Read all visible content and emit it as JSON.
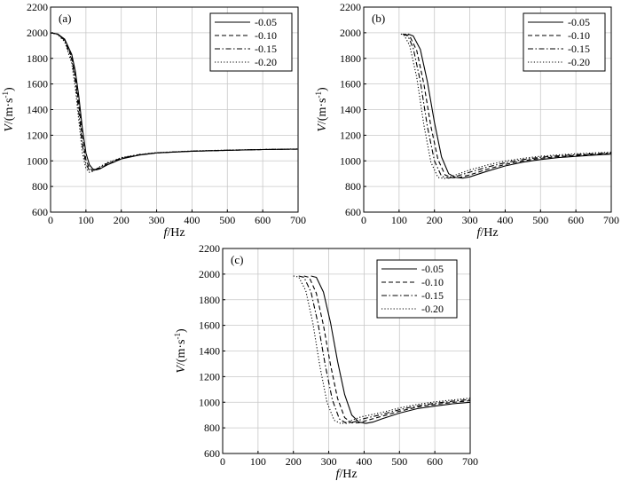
{
  "chart_data": [
    {
      "type": "line",
      "panel_label": "(a)",
      "xlabel_italic": "f",
      "xlabel_rest": "/Hz",
      "ylabel_italic": "V",
      "ylabel_rest": "/(m·s",
      "ylabel_sup": "-1",
      "ylabel_close": ")",
      "xlim": [
        0,
        700
      ],
      "ylim": [
        600,
        2200
      ],
      "xticks": [
        0,
        100,
        200,
        300,
        400,
        500,
        600,
        700
      ],
      "yticks": [
        600,
        800,
        1000,
        1200,
        1400,
        1600,
        1800,
        2000,
        2200
      ],
      "grid": true,
      "legend_position": "top-right",
      "series": [
        {
          "name": "-0.05",
          "dash": "solid",
          "x": [
            0,
            20,
            40,
            60,
            70,
            80,
            90,
            100,
            110,
            120,
            130,
            140,
            160,
            200,
            250,
            300,
            400,
            500,
            600,
            700
          ],
          "y": [
            2000,
            1990,
            1950,
            1830,
            1700,
            1500,
            1250,
            1060,
            970,
            935,
            930,
            938,
            968,
            1015,
            1045,
            1062,
            1075,
            1082,
            1088,
            1092
          ]
        },
        {
          "name": "-0.10",
          "dash": "dashed",
          "x": [
            0,
            20,
            40,
            60,
            70,
            80,
            90,
            100,
            110,
            120,
            140,
            160,
            200,
            250,
            300,
            400,
            500,
            600,
            700
          ],
          "y": [
            2000,
            1990,
            1945,
            1810,
            1660,
            1440,
            1180,
            1010,
            940,
            925,
            942,
            972,
            1018,
            1046,
            1062,
            1075,
            1082,
            1088,
            1092
          ]
        },
        {
          "name": "-0.15",
          "dash": "dashdot",
          "x": [
            0,
            20,
            40,
            60,
            70,
            80,
            90,
            100,
            110,
            120,
            140,
            160,
            200,
            250,
            300,
            400,
            500,
            600,
            700
          ],
          "y": [
            2000,
            1988,
            1940,
            1790,
            1620,
            1380,
            1120,
            975,
            925,
            925,
            950,
            980,
            1022,
            1048,
            1063,
            1076,
            1083,
            1088,
            1092
          ]
        },
        {
          "name": "-0.20",
          "dash": "dotted",
          "x": [
            0,
            20,
            40,
            60,
            70,
            80,
            90,
            100,
            110,
            120,
            140,
            160,
            200,
            250,
            300,
            400,
            500,
            600,
            700
          ],
          "y": [
            2000,
            1986,
            1930,
            1760,
            1570,
            1310,
            1060,
            940,
            910,
            918,
            955,
            985,
            1025,
            1050,
            1064,
            1077,
            1084,
            1089,
            1093
          ]
        }
      ]
    },
    {
      "type": "line",
      "panel_label": "(b)",
      "xlabel_italic": "f",
      "xlabel_rest": "/Hz",
      "ylabel_italic": "V",
      "ylabel_rest": "/(m·s",
      "ylabel_sup": "-1",
      "ylabel_close": ")",
      "xlim": [
        0,
        700
      ],
      "ylim": [
        600,
        2200
      ],
      "xticks": [
        0,
        100,
        200,
        300,
        400,
        500,
        600,
        700
      ],
      "yticks": [
        600,
        800,
        1000,
        1200,
        1400,
        1600,
        1800,
        2000,
        2200
      ],
      "grid": true,
      "legend_position": "top-right",
      "series": [
        {
          "name": "-0.05",
          "dash": "solid",
          "x": [
            125,
            140,
            160,
            180,
            200,
            220,
            240,
            260,
            280,
            300,
            350,
            400,
            450,
            500,
            550,
            600,
            650,
            700
          ],
          "y": [
            1990,
            1975,
            1870,
            1620,
            1300,
            1030,
            900,
            870,
            865,
            875,
            920,
            960,
            990,
            1010,
            1025,
            1035,
            1045,
            1052
          ]
        },
        {
          "name": "-0.10",
          "dash": "dashed",
          "x": [
            115,
            130,
            150,
            170,
            190,
            210,
            230,
            250,
            270,
            300,
            350,
            400,
            450,
            500,
            550,
            600,
            650,
            700
          ],
          "y": [
            1990,
            1975,
            1860,
            1600,
            1270,
            1010,
            890,
            868,
            870,
            890,
            935,
            972,
            1000,
            1020,
            1033,
            1042,
            1050,
            1057
          ]
        },
        {
          "name": "-0.15",
          "dash": "dashdot",
          "x": [
            110,
            125,
            140,
            160,
            180,
            200,
            220,
            240,
            260,
            300,
            350,
            400,
            450,
            500,
            550,
            600,
            650,
            700
          ],
          "y": [
            1990,
            1975,
            1880,
            1620,
            1270,
            1000,
            880,
            865,
            878,
            912,
            952,
            985,
            1010,
            1028,
            1040,
            1048,
            1055,
            1062
          ]
        },
        {
          "name": "-0.20",
          "dash": "dotted",
          "x": [
            105,
            115,
            130,
            150,
            170,
            190,
            210,
            230,
            250,
            300,
            350,
            400,
            450,
            500,
            550,
            600,
            650,
            700
          ],
          "y": [
            1990,
            1978,
            1900,
            1650,
            1280,
            990,
            870,
            862,
            880,
            930,
            968,
            998,
            1020,
            1036,
            1047,
            1055,
            1062,
            1068
          ]
        }
      ]
    },
    {
      "type": "line",
      "panel_label": "(c)",
      "xlabel_italic": "f",
      "xlabel_rest": "/Hz",
      "ylabel_italic": "V",
      "ylabel_rest": "/(m·s",
      "ylabel_sup": "-1",
      "ylabel_close": ")",
      "xlim": [
        0,
        700
      ],
      "ylim": [
        600,
        2200
      ],
      "xticks": [
        0,
        100,
        200,
        300,
        400,
        500,
        600,
        700
      ],
      "yticks": [
        600,
        800,
        1000,
        1200,
        1400,
        1600,
        1800,
        2000,
        2200
      ],
      "grid": true,
      "legend_position": "top-right",
      "series": [
        {
          "name": "-0.05",
          "dash": "solid",
          "x": [
            250,
            265,
            285,
            305,
            325,
            345,
            365,
            385,
            405,
            425,
            450,
            500,
            550,
            600,
            650,
            700
          ],
          "y": [
            1985,
            1975,
            1860,
            1620,
            1320,
            1060,
            900,
            845,
            835,
            845,
            870,
            915,
            950,
            970,
            988,
            1000
          ]
        },
        {
          "name": "-0.10",
          "dash": "dashed",
          "x": [
            230,
            245,
            265,
            285,
            305,
            325,
            345,
            365,
            385,
            410,
            450,
            500,
            550,
            600,
            650,
            700
          ],
          "y": [
            1985,
            1975,
            1850,
            1600,
            1290,
            1030,
            880,
            840,
            840,
            860,
            890,
            930,
            962,
            982,
            998,
            1012
          ]
        },
        {
          "name": "-0.15",
          "dash": "dashdot",
          "x": [
            215,
            230,
            250,
            270,
            290,
            310,
            330,
            350,
            370,
            400,
            450,
            500,
            550,
            600,
            650,
            700
          ],
          "y": [
            1985,
            1975,
            1860,
            1610,
            1290,
            1020,
            870,
            835,
            845,
            872,
            905,
            942,
            972,
            992,
            1008,
            1022
          ]
        },
        {
          "name": "-0.20",
          "dash": "dotted",
          "x": [
            200,
            215,
            235,
            255,
            275,
            295,
            315,
            335,
            355,
            390,
            450,
            500,
            550,
            600,
            650,
            700
          ],
          "y": [
            1985,
            1978,
            1870,
            1620,
            1280,
            1000,
            860,
            832,
            848,
            885,
            920,
            955,
            983,
            1003,
            1018,
            1032
          ]
        }
      ]
    }
  ]
}
